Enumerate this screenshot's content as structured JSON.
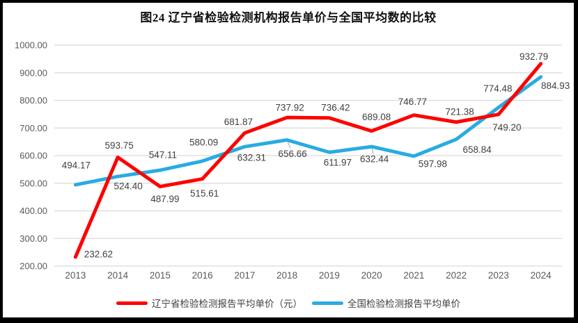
{
  "title": "图24 辽宁省检验检测机构报告单价与全国平均数的比较",
  "chart_data": {
    "type": "line",
    "categories": [
      "2013",
      "2014",
      "2015",
      "2016",
      "2017",
      "2018",
      "2019",
      "2020",
      "2021",
      "2022",
      "2023",
      "2024"
    ],
    "series": [
      {
        "name": "辽宁省检验检测报告平均单价（元）",
        "color": "#FF0000",
        "values": [
          232.62,
          593.75,
          487.99,
          515.61,
          681.87,
          737.92,
          736.42,
          689.08,
          746.77,
          721.38,
          749.2,
          932.79
        ],
        "label_offsets": [
          [
            33,
            -4
          ],
          [
            2,
            -17
          ],
          [
            7,
            18
          ],
          [
            3,
            21
          ],
          [
            -9,
            -16
          ],
          [
            4,
            -14
          ],
          [
            9,
            -15
          ],
          [
            7,
            -20
          ],
          [
            -2,
            -19
          ],
          [
            5,
            -15
          ],
          [
            12,
            19
          ],
          [
            -10,
            -10
          ]
        ],
        "leaders": []
      },
      {
        "name": "全国检验检测报告平均单价",
        "color": "#29ABE2",
        "values": [
          494.17,
          524.4,
          547.11,
          580.09,
          632.31,
          656.66,
          611.97,
          632.44,
          597.98,
          658.84,
          774.48,
          884.93
        ],
        "label_offsets": [
          [
            1,
            -28
          ],
          [
            15,
            14
          ],
          [
            4,
            -22
          ],
          [
            2,
            -27
          ],
          [
            10,
            16
          ],
          [
            8,
            20
          ],
          [
            12,
            15
          ],
          [
            4,
            18
          ],
          [
            27,
            11
          ],
          [
            30,
            15
          ],
          [
            -1,
            -27
          ],
          [
            21,
            13
          ]
        ],
        "leaders": [
          5,
          7
        ]
      }
    ],
    "title": "图24 辽宁省检验检测机构报告单价与全国平均数的比较",
    "xlabel": "",
    "ylabel": "",
    "ylim": [
      200,
      1000
    ],
    "ytick_step": 100,
    "ytick_decimals": 2,
    "value_decimals": 2,
    "grid": true,
    "legend_position": "bottom",
    "gridline_color": "#D9D9D9",
    "axis_tick_color": "#595959",
    "data_label_color": "#3F3F3F",
    "leader_line_color": "#A6A6A6"
  },
  "legend": {
    "items": [
      {
        "label": "辽宁省检验检测报告平均单价（元）"
      },
      {
        "label": "全国检验检测报告平均单价"
      }
    ]
  }
}
